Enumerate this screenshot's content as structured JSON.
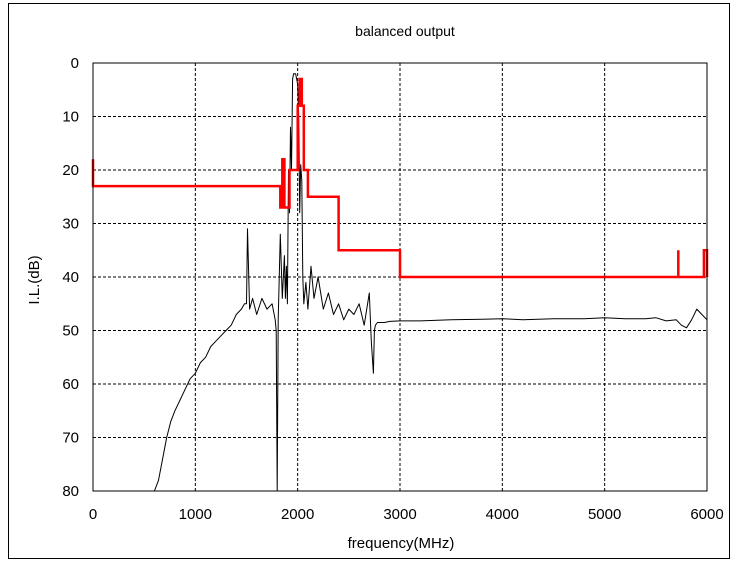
{
  "chart_data": {
    "type": "line",
    "title": "balanced output",
    "xlabel": "frequency(MHz)",
    "ylabel": "I.L.(dB)",
    "xlim": [
      0,
      6000
    ],
    "ylim": [
      0,
      80
    ],
    "y_inverted": true,
    "grid": true,
    "x_ticks": [
      0,
      1000,
      2000,
      3000,
      4000,
      5000,
      6000
    ],
    "y_ticks": [
      0,
      10,
      20,
      30,
      40,
      50,
      60,
      70,
      80
    ],
    "x_tick_labels": [
      "0",
      "1000",
      "2000",
      "3000",
      "4000",
      "5000",
      "6000"
    ],
    "y_tick_labels": [
      "0",
      "10",
      "20",
      "30",
      "40",
      "50",
      "60",
      "70",
      "80"
    ],
    "series": [
      {
        "color": "#000000",
        "x": [
          600,
          640,
          680,
          720,
          760,
          800,
          850,
          900,
          950,
          1000,
          1050,
          1100,
          1150,
          1200,
          1250,
          1300,
          1350,
          1400,
          1450,
          1480,
          1500,
          1510,
          1530,
          1560,
          1600,
          1650,
          1700,
          1750,
          1780,
          1790,
          1800,
          1810,
          1830,
          1850,
          1870,
          1880,
          1890,
          1900,
          1910,
          1920,
          1930,
          1940,
          1950,
          1960,
          1980,
          2000,
          2010,
          2020,
          2030,
          2040,
          2050,
          2060,
          2080,
          2100,
          2130,
          2160,
          2200,
          2250,
          2300,
          2350,
          2400,
          2450,
          2500,
          2550,
          2600,
          2650,
          2700,
          2720,
          2740,
          2750,
          2760,
          2780,
          2800,
          2850,
          2900,
          3000,
          3200,
          3500,
          3800,
          4000,
          4200,
          4500,
          4800,
          5000,
          5200,
          5400,
          5500,
          5600,
          5700,
          5750,
          5800,
          5850,
          5900,
          5950,
          6000
        ],
        "y": [
          80,
          78,
          74,
          70,
          67,
          65,
          63,
          61,
          59,
          58,
          56,
          55,
          53,
          52,
          51,
          50,
          49,
          47,
          46,
          45,
          45,
          31,
          46,
          44,
          47,
          44,
          46,
          45,
          48,
          50,
          80,
          48,
          32,
          44,
          36,
          44,
          38,
          45,
          20,
          28,
          12,
          20,
          3,
          2,
          2,
          4,
          10,
          28,
          19,
          22,
          40,
          45,
          41,
          46,
          38,
          44,
          40,
          46,
          43,
          47,
          45,
          48,
          46,
          47,
          45,
          49,
          43,
          52,
          58,
          50,
          49,
          48.5,
          48.5,
          48.5,
          48.3,
          48.2,
          48.2,
          48.0,
          47.9,
          47.8,
          48.0,
          47.8,
          47.8,
          47.6,
          47.8,
          47.8,
          47.6,
          48.2,
          48.0,
          49,
          49.5,
          48,
          46,
          47,
          48
        ]
      },
      {
        "color": "#ff0000",
        "x": [
          0,
          0,
          0,
          1830,
          1830,
          1850,
          1850,
          1870,
          1870,
          1920,
          1920,
          2000,
          2000,
          2020,
          2020,
          2040,
          2040,
          2060,
          2060,
          2100,
          2100,
          2400,
          2400,
          3000,
          3000,
          5720,
          5720,
          5720,
          5720,
          5970,
          5970,
          6000,
          6000
        ],
        "y": [
          18,
          23,
          23,
          23,
          27,
          27,
          18,
          18,
          27,
          27,
          20,
          20,
          8,
          8,
          3,
          3,
          8,
          8,
          20,
          20,
          25,
          25,
          35,
          35,
          40,
          40,
          35,
          40,
          40,
          40,
          35,
          35,
          40
        ]
      }
    ]
  }
}
